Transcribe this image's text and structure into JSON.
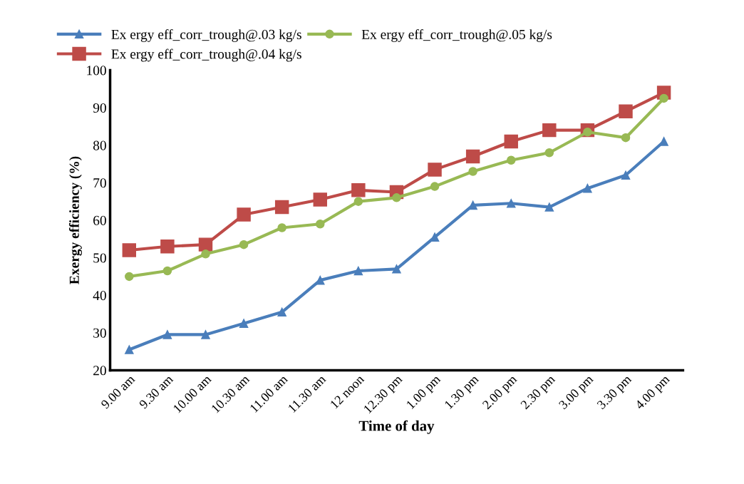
{
  "chart_data": {
    "type": "line",
    "xlabel": "Time of day",
    "ylabel": "Exergy efficiency (%)",
    "categories": [
      "9.00 am",
      "9.30 am",
      "10.00 am",
      "10.30 am",
      "11.00 am",
      "11.30 am",
      "12 noon",
      "12.30 pm",
      "1.00 pm",
      "1.30 pm",
      "2.00 pm",
      "2.30 pm",
      "3.00 pm",
      "3.30 pm",
      "4.00 pm"
    ],
    "series": [
      {
        "name": "Ex ergy eff_corr_trough@.03 kg/s",
        "color": "#4a7ebb",
        "marker": "triangle",
        "values": [
          25.5,
          29.5,
          29.5,
          32.5,
          35.5,
          44,
          46.5,
          47,
          55.5,
          64,
          64.5,
          63.5,
          68.5,
          72,
          81
        ]
      },
      {
        "name": "Ex ergy eff_corr_trough@.04 kg/s",
        "color": "#be4b48",
        "marker": "square",
        "values": [
          52,
          53,
          53.5,
          61.5,
          63.5,
          65.5,
          68,
          67.5,
          73.5,
          77,
          81,
          84,
          84,
          89,
          94
        ]
      },
      {
        "name": "Ex ergy eff_corr_trough@.05 kg/s",
        "color": "#98b954",
        "marker": "circle",
        "values": [
          45,
          46.5,
          51,
          53.5,
          58,
          59,
          65,
          66,
          69,
          73,
          76,
          78,
          83.5,
          82,
          92.5
        ]
      }
    ],
    "ylim": [
      20,
      100
    ],
    "yticks": [
      20,
      30,
      40,
      50,
      60,
      70,
      80,
      90,
      100
    ],
    "grid": false,
    "legend": "top"
  }
}
